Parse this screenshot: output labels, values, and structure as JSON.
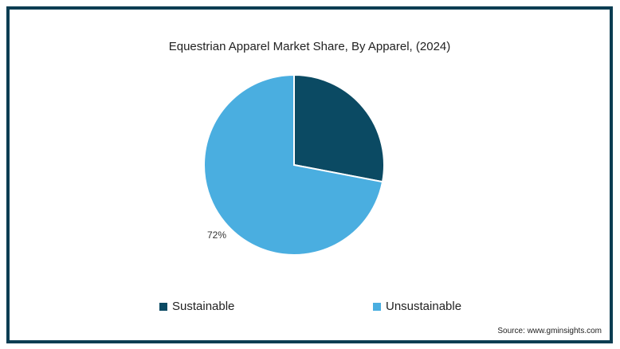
{
  "chart_data": {
    "type": "pie",
    "title": "Equestrian Apparel Market Share, By Apparel, (2024)",
    "slices": [
      {
        "name": "Sustainable",
        "value": 28,
        "color": "#0b4a63",
        "label": ""
      },
      {
        "name": "Unsustainable",
        "value": 72,
        "color": "#4aaee0",
        "label": "72%"
      }
    ],
    "legend_position": "bottom"
  },
  "source": "Source: www.gminsights.com"
}
